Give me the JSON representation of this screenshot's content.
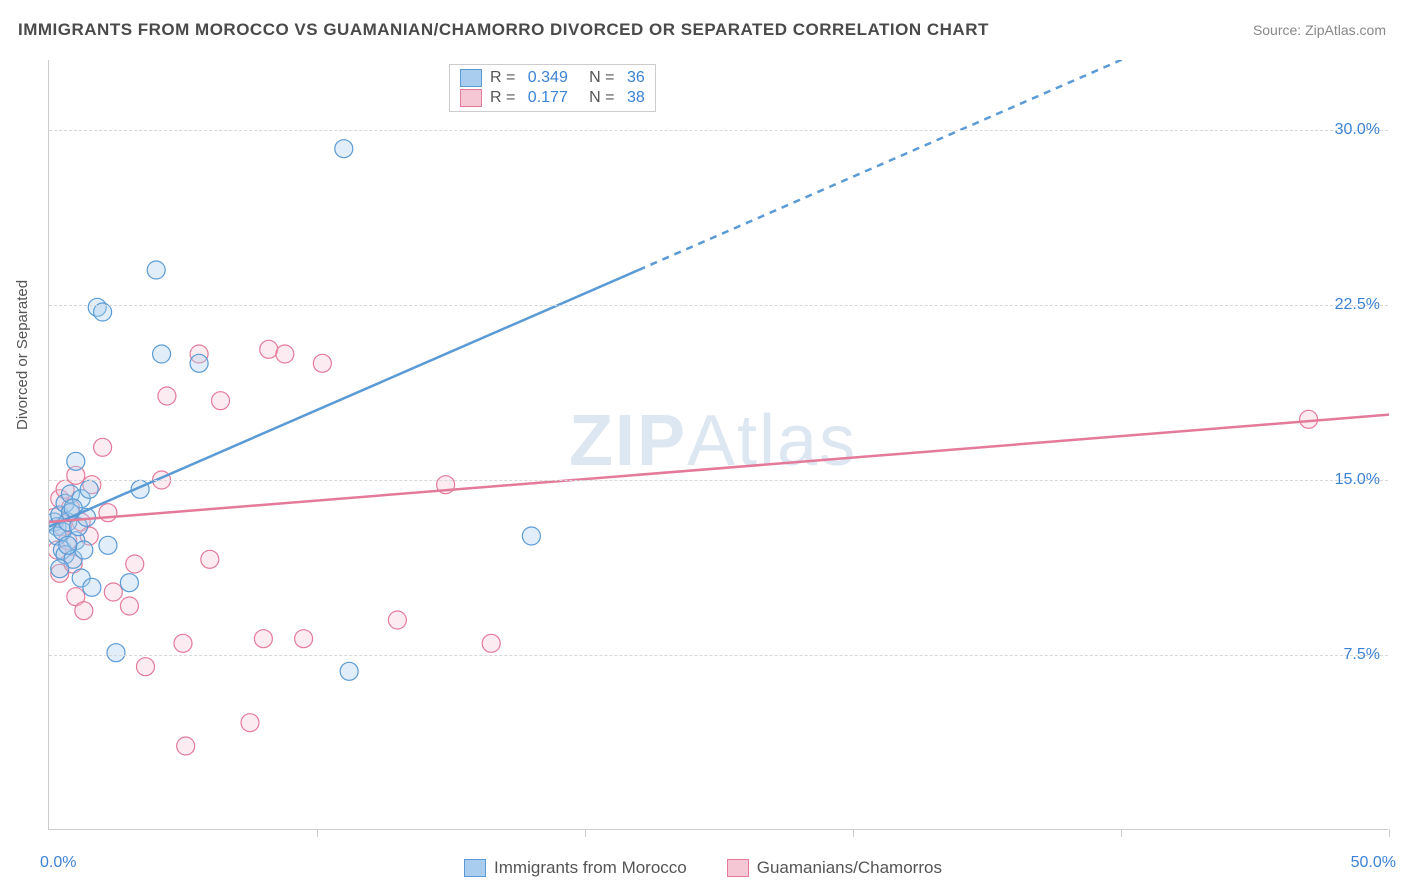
{
  "title": "IMMIGRANTS FROM MOROCCO VS GUAMANIAN/CHAMORRO DIVORCED OR SEPARATED CORRELATION CHART",
  "source": "Source: ZipAtlas.com",
  "y_axis_label": "Divorced or Separated",
  "watermark": "ZIPAtlas",
  "chart": {
    "type": "scatter",
    "xlim": [
      0.0,
      50.0
    ],
    "ylim": [
      0.0,
      33.0
    ],
    "xticks": [
      0.0,
      10.0,
      20.0,
      30.0,
      40.0,
      50.0
    ],
    "xtick_labels": {
      "0": "0.0%",
      "50": "50.0%"
    },
    "yticks": [
      7.5,
      15.0,
      22.5,
      30.0
    ],
    "ytick_labels": [
      "7.5%",
      "15.0%",
      "22.5%",
      "30.0%"
    ],
    "grid_color": "#d8d8d8",
    "axis_color": "#cccccc",
    "background_color": "#ffffff",
    "marker_radius": 9,
    "series": [
      {
        "name": "Immigrants from Morocco",
        "color_fill": "#a9cdee",
        "color_stroke": "#5a9bd5",
        "R": "0.349",
        "N": "36",
        "points": [
          [
            0.2,
            13.2
          ],
          [
            0.3,
            13.0
          ],
          [
            0.3,
            12.6
          ],
          [
            0.4,
            13.5
          ],
          [
            0.5,
            12.8
          ],
          [
            0.5,
            12.0
          ],
          [
            0.6,
            14.0
          ],
          [
            0.6,
            11.8
          ],
          [
            0.7,
            13.2
          ],
          [
            0.8,
            13.6
          ],
          [
            0.8,
            14.4
          ],
          [
            0.9,
            11.6
          ],
          [
            1.0,
            12.4
          ],
          [
            1.0,
            15.8
          ],
          [
            1.1,
            13.0
          ],
          [
            1.2,
            14.2
          ],
          [
            1.2,
            10.8
          ],
          [
            1.3,
            12.0
          ],
          [
            1.5,
            14.6
          ],
          [
            1.6,
            10.4
          ],
          [
            1.8,
            22.4
          ],
          [
            2.0,
            22.2
          ],
          [
            2.2,
            12.2
          ],
          [
            2.5,
            7.6
          ],
          [
            3.0,
            10.6
          ],
          [
            3.4,
            14.6
          ],
          [
            4.0,
            24.0
          ],
          [
            4.2,
            20.4
          ],
          [
            5.6,
            20.0
          ],
          [
            11.0,
            29.2
          ],
          [
            11.2,
            6.8
          ],
          [
            18.0,
            12.6
          ],
          [
            0.4,
            11.2
          ],
          [
            0.7,
            12.2
          ],
          [
            0.9,
            13.8
          ],
          [
            1.4,
            13.4
          ]
        ],
        "trend": {
          "start": [
            0.0,
            13.0
          ],
          "solid_end": [
            22.0,
            24.0
          ],
          "dash_end": [
            44.0,
            35.0
          ]
        }
      },
      {
        "name": "Guamanians/Chamorros",
        "color_fill": "#f5c6d4",
        "color_stroke": "#e47a9a",
        "R": "0.177",
        "N": "38",
        "points": [
          [
            0.2,
            13.4
          ],
          [
            0.3,
            12.0
          ],
          [
            0.4,
            14.2
          ],
          [
            0.4,
            11.0
          ],
          [
            0.5,
            13.0
          ],
          [
            0.6,
            14.6
          ],
          [
            0.7,
            12.4
          ],
          [
            0.8,
            13.8
          ],
          [
            0.9,
            11.4
          ],
          [
            1.0,
            15.2
          ],
          [
            1.0,
            10.0
          ],
          [
            1.2,
            13.2
          ],
          [
            1.3,
            9.4
          ],
          [
            1.5,
            12.6
          ],
          [
            1.6,
            14.8
          ],
          [
            2.0,
            16.4
          ],
          [
            2.2,
            13.6
          ],
          [
            2.4,
            10.2
          ],
          [
            3.0,
            9.6
          ],
          [
            3.2,
            11.4
          ],
          [
            3.6,
            7.0
          ],
          [
            4.2,
            15.0
          ],
          [
            4.4,
            18.6
          ],
          [
            5.0,
            8.0
          ],
          [
            5.1,
            3.6
          ],
          [
            5.6,
            20.4
          ],
          [
            6.0,
            11.6
          ],
          [
            6.4,
            18.4
          ],
          [
            7.5,
            4.6
          ],
          [
            8.0,
            8.2
          ],
          [
            8.2,
            20.6
          ],
          [
            8.8,
            20.4
          ],
          [
            9.5,
            8.2
          ],
          [
            10.2,
            20.0
          ],
          [
            13.0,
            9.0
          ],
          [
            14.8,
            14.8
          ],
          [
            16.5,
            8.0
          ],
          [
            47.0,
            17.6
          ]
        ],
        "trend": {
          "start": [
            0.0,
            13.2
          ],
          "solid_end": [
            50.0,
            17.8
          ]
        }
      }
    ]
  },
  "legend_bottom": [
    {
      "label": "Immigrants from Morocco",
      "fill": "#a9cdee",
      "stroke": "#5a9bd5"
    },
    {
      "label": "Guamanians/Chamorros",
      "fill": "#f5c6d4",
      "stroke": "#e47a9a"
    }
  ],
  "colors": {
    "title_text": "#4a4a4a",
    "source_text": "#888888",
    "tick_label": "#3b82d4",
    "axis_label": "#555555"
  }
}
